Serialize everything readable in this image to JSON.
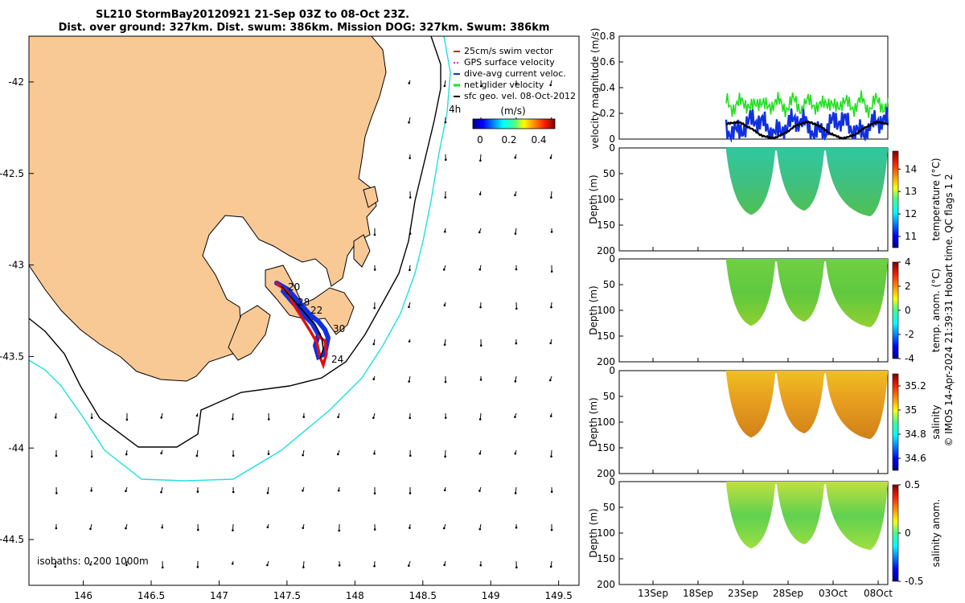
{
  "title_line1": "SL210 StormBay20120921 21-Sep 03Z to 08-Oct 23Z.",
  "title_line2": "Dist. over ground: 327km. Dist. swum: 386km. Mission DOG: 327km. Swum: 386km",
  "chart_data": [
    {
      "type": "map",
      "lon_ticks": [
        "146",
        "146.5",
        "147",
        "147.5",
        "148",
        "148.5",
        "149",
        "149.5"
      ],
      "lat_ticks": [
        "-42",
        "-42.5",
        "-43",
        "-43.5",
        "-44",
        "-44.5"
      ],
      "xlim": [
        145.6,
        149.65
      ],
      "ylim": [
        -44.75,
        -41.75
      ],
      "legend": [
        {
          "label": "25cm/s swim vector",
          "color": "#e01010"
        },
        {
          "label": "GPS surface velocity",
          "color": "#e020e0"
        },
        {
          "label": "dive-avg current veloc.",
          "color": "#1030e0"
        },
        {
          "label": "net glider velocity",
          "color": "#20e020"
        },
        {
          "label": "sfc geo. vel. 08-Oct-2012",
          "color": "#000000"
        }
      ],
      "colorbar": {
        "label": "(m/s)",
        "ticks": [
          "0",
          "0.2",
          "0.4"
        ]
      },
      "isobath_label": "isobaths: 0  200  1000m",
      "annotations": [
        "4h",
        "20",
        "22",
        "28",
        "30",
        "24"
      ]
    },
    {
      "type": "line",
      "ylabel": "velocity magnitude (m/s)",
      "ylim": [
        0,
        0.8
      ],
      "yticks": [
        "0",
        "0.2",
        "0.4",
        "0.6",
        "0.8"
      ],
      "series": [
        {
          "name": "net glider velocity",
          "color": "#20e020",
          "typical": 0.27
        },
        {
          "name": "dive-avg current veloc.",
          "color": "#1030e0",
          "typical": 0.1
        },
        {
          "name": "sfc geo. vel.",
          "color": "#000000",
          "typical": 0.07
        }
      ]
    },
    {
      "type": "heatmap",
      "ylabel": "Depth (m)",
      "cblabel": "temperature (°C)",
      "yticks": [
        "0",
        "50",
        "100",
        "150",
        "200"
      ],
      "cbticks": [
        "14",
        "13",
        "12",
        "11"
      ]
    },
    {
      "type": "heatmap",
      "ylabel": "Depth (m)",
      "cblabel": "temp. anom. (°C)",
      "yticks": [
        "0",
        "50",
        "100",
        "150",
        "200"
      ],
      "cbticks": [
        "4",
        "2",
        "0",
        "-2",
        "-4"
      ]
    },
    {
      "type": "heatmap",
      "ylabel": "Depth (m)",
      "cblabel": "salinity",
      "yticks": [
        "0",
        "50",
        "100",
        "150",
        "200"
      ],
      "cbticks": [
        "35.2",
        "35",
        "34.8",
        "34.6"
      ]
    },
    {
      "type": "heatmap",
      "ylabel": "Depth (m)",
      "cblabel": "salinity anom.",
      "yticks": [
        "0",
        "50",
        "100",
        "150",
        "200"
      ],
      "cbticks": [
        "0.5",
        "0",
        "-0.5"
      ]
    }
  ],
  "time_axis": [
    "13Sep",
    "18Sep",
    "23Sep",
    "28Sep",
    "03Oct",
    "08Oct"
  ],
  "footer": "© IMOS 14-Apr-2024 21:39:31 Hobart time. QC flags 1  2"
}
